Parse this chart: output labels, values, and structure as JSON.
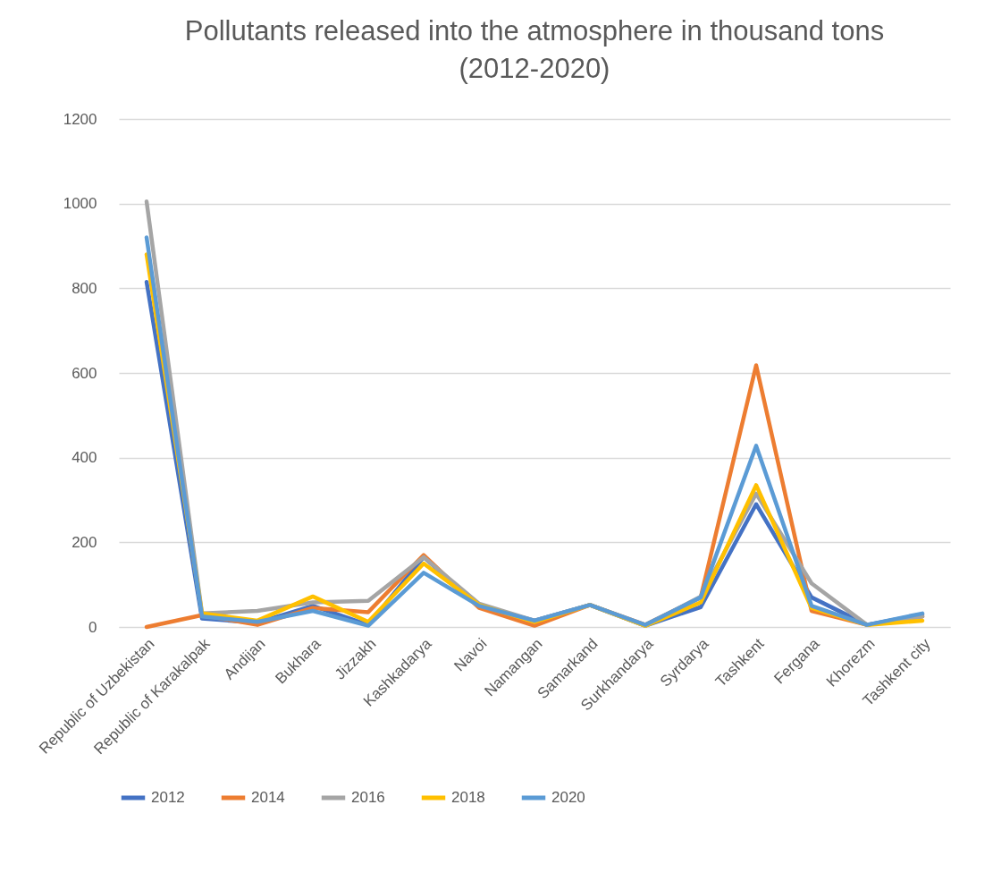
{
  "chart_data": {
    "type": "line",
    "title": "Pollutants released into the atmosphere in thousand tons (2012-2020)",
    "categories": [
      "Republic of Uzbekistan",
      "Republic of Karakalpak",
      "Andijan",
      "Bukhara",
      "Jizzakh",
      "Kashkadarya",
      "Navoi",
      "Namangan",
      "Samarkand",
      "Surkhandarya",
      "Syrdarya",
      "Tashkent",
      "Fergana",
      "Khorezm",
      "Tashkent city"
    ],
    "series": [
      {
        "name": "2012",
        "color": "#4472c4",
        "values": [
          815,
          20,
          10,
          50,
          5,
          165,
          50,
          15,
          52,
          3,
          47,
          290,
          70,
          5,
          30
        ]
      },
      {
        "name": "2014",
        "color": "#ed7d31",
        "values": [
          0,
          28,
          5,
          45,
          35,
          170,
          45,
          3,
          52,
          5,
          70,
          618,
          38,
          5,
          25
        ]
      },
      {
        "name": "2016",
        "color": "#a5a5a5",
        "values": [
          1005,
          32,
          38,
          58,
          62,
          165,
          55,
          15,
          52,
          3,
          72,
          315,
          103,
          5,
          25
        ]
      },
      {
        "name": "2018",
        "color": "#ffc000",
        "values": [
          880,
          32,
          15,
          72,
          12,
          150,
          52,
          12,
          52,
          3,
          58,
          335,
          45,
          5,
          15
        ]
      },
      {
        "name": "2020",
        "color": "#5b9bd5",
        "values": [
          920,
          25,
          12,
          38,
          3,
          128,
          50,
          15,
          52,
          5,
          70,
          428,
          50,
          5,
          32
        ]
      }
    ],
    "ylim": [
      0,
      1200
    ],
    "yticks": [
      0,
      200,
      400,
      600,
      800,
      1000,
      1200
    ],
    "grid": "y",
    "legend": "bottom",
    "marker": "none",
    "line_style": "solid"
  }
}
